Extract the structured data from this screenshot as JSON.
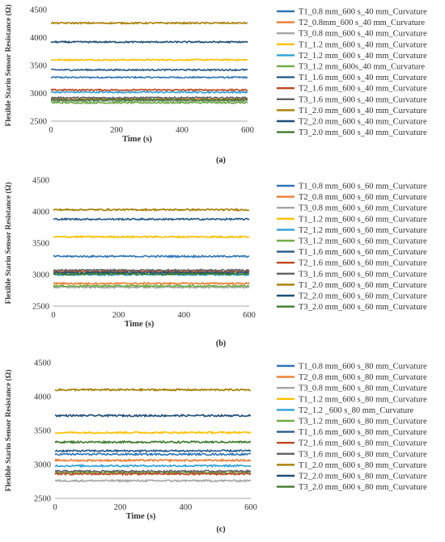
{
  "chart_data": [
    {
      "type": "line",
      "caption": "(a)",
      "xlabel": "Time (s)",
      "ylabel": "Flexible Starin Sensor Resistance (Ω)",
      "xlim": [
        0,
        600
      ],
      "ylim": [
        2500,
        4500
      ],
      "xticks": [
        0,
        200,
        400,
        600
      ],
      "yticks": [
        2500,
        3000,
        3500,
        4000,
        4500
      ],
      "grid": false,
      "legend": "right",
      "series": [
        {
          "name": "T1_0.8 mm_600 s_40 mm_Curvature",
          "value": 3285,
          "color": "#2e75b6"
        },
        {
          "name": "T2_0.8mm_600 s_40 mm_Curvature",
          "value": 2895,
          "color": "#ed7d31"
        },
        {
          "name": "T3_0.8 mm_600 s_40 mm_Curvature",
          "value": 2860,
          "color": "#a5a5a5"
        },
        {
          "name": "T1_1.2 mm_600 s_40 mm_Curvature",
          "value": 3600,
          "color": "#ffc000"
        },
        {
          "name": "T2_1.2 mm_600 s_40 mm_Curvature",
          "value": 3020,
          "color": "#2fa1d6"
        },
        {
          "name": "T3_1.2 mm_600s_40 mm_Curvature",
          "value": 2830,
          "color": "#70ad47"
        },
        {
          "name": "T1_1.6 mm_600 s_40 mm_Curvature",
          "value": 3420,
          "color": "#265b8a"
        },
        {
          "name": "T2_1.6 mm_600 s_40 mm_Curvature",
          "value": 3060,
          "color": "#c0461d"
        },
        {
          "name": "T3_1.6 mm_600 s_40 mm_Curvature",
          "value": 2920,
          "color": "#636363"
        },
        {
          "name": "T1_2.0 mm_600 s_40 mm_Curvature",
          "value": 4260,
          "color": "#a87d00"
        },
        {
          "name": "T2_2.0 mm_600 s_40 mm_Curvature",
          "value": 3920,
          "color": "#1f4e79"
        },
        {
          "name": "T3_2.0 mm_600 s_40 mm_Curvature",
          "value": 2880,
          "color": "#3d7a2b"
        }
      ]
    },
    {
      "type": "line",
      "caption": "(b)",
      "xlabel": "Time (s)",
      "ylabel": "Flexible Starin Sensor Resistance (Ω)",
      "xlim": [
        0,
        600
      ],
      "ylim": [
        2500,
        4500
      ],
      "xticks": [
        0,
        200,
        400,
        600
      ],
      "yticks": [
        2500,
        3000,
        3500,
        4000,
        4500
      ],
      "grid": false,
      "legend": "right",
      "series": [
        {
          "name": "T1_0.8 mm_600 s_60 mm_Curvature",
          "value": 3290,
          "color": "#2e75b6"
        },
        {
          "name": "T2_0.8 mm_600 s_60 mm_Curvature",
          "value": 2860,
          "color": "#ed7d31"
        },
        {
          "name": "T3_0.8 mm_600 s_60 mm_Curvature",
          "value": 2800,
          "color": "#a5a5a5"
        },
        {
          "name": "T1_1.2 mm_600 s_60 mm_Curvature",
          "value": 3600,
          "color": "#ffc000"
        },
        {
          "name": "T2_1.2 mm_600 s_60 mm_Curvature",
          "value": 3000,
          "color": "#2fa1d6"
        },
        {
          "name": "T3_1.2 mm_600 s_60 mm_Curvature",
          "value": 2820,
          "color": "#70ad47"
        },
        {
          "name": "T1_1.6 mm_600 s_60 mm_Curvature",
          "value": 3880,
          "color": "#265b8a"
        },
        {
          "name": "T2_1.6 mm_600 s_60 mm_Curvature",
          "value": 3050,
          "color": "#c0461d"
        },
        {
          "name": "T3_1.6 mm_600 s_60 mm_Curvature",
          "value": 3070,
          "color": "#636363"
        },
        {
          "name": "T1_2.0 mm_600 s_60 mm_Curvature",
          "value": 4030,
          "color": "#a87d00"
        },
        {
          "name": "T2_2.0 mm_600 s_60 mm_Curvature",
          "value": 3030,
          "color": "#1f4e79"
        },
        {
          "name": "T3_2.0 mm_600 s_60 mm_Curvature",
          "value": 3010,
          "color": "#3d7a2b"
        }
      ]
    },
    {
      "type": "line",
      "caption": "(c)",
      "xlabel": "Time (s)",
      "ylabel": "Flexible Starin Sensor Resistance (Ω)",
      "xlim": [
        0,
        600
      ],
      "ylim": [
        2500,
        4500
      ],
      "xticks": [
        0,
        200,
        400,
        600
      ],
      "yticks": [
        2500,
        3000,
        3500,
        4000,
        4500
      ],
      "grid": false,
      "legend": "right",
      "series": [
        {
          "name": "T1_0.8 mm_600 s_80 mm_Curvature",
          "value": 3150,
          "color": "#2e75b6"
        },
        {
          "name": "T2_0.8 mm_600 s_80 mm_Curvature",
          "value": 3060,
          "color": "#ed7d31"
        },
        {
          "name": "T3_0.8 mm_600 s_80 mm_Curvature",
          "value": 2760,
          "color": "#a5a5a5"
        },
        {
          "name": "T1_1.2 mm_600 s_80 mm_Curvature",
          "value": 3470,
          "color": "#ffc000"
        },
        {
          "name": "T2_1.2 _600 s_80 mm_Curvature",
          "value": 2980,
          "color": "#2fa1d6"
        },
        {
          "name": "T3_1.2 mm_600 s_80 mm_Curvature",
          "value": 2880,
          "color": "#70ad47"
        },
        {
          "name": "T1_1.6 mm_600 s_80 mm_Curvature",
          "value": 3200,
          "color": "#265b8a"
        },
        {
          "name": "T2_1.6 mm_600 s_80 mm_Curvature",
          "value": 2860,
          "color": "#c0461d"
        },
        {
          "name": "T3_1.6 mm_600 s_80 mm_Curvature",
          "value": 2900,
          "color": "#636363"
        },
        {
          "name": "T1_2.0 mm_600 s_80 mm_Curvature",
          "value": 4100,
          "color": "#a87d00"
        },
        {
          "name": "T2_2.0 mm_600 s_80 mm_Curvature",
          "value": 3720,
          "color": "#1f4e79"
        },
        {
          "name": "T3_2.0 mm_600 s_80 mm_Curvature",
          "value": 3330,
          "color": "#3d7a2b"
        }
      ]
    }
  ]
}
